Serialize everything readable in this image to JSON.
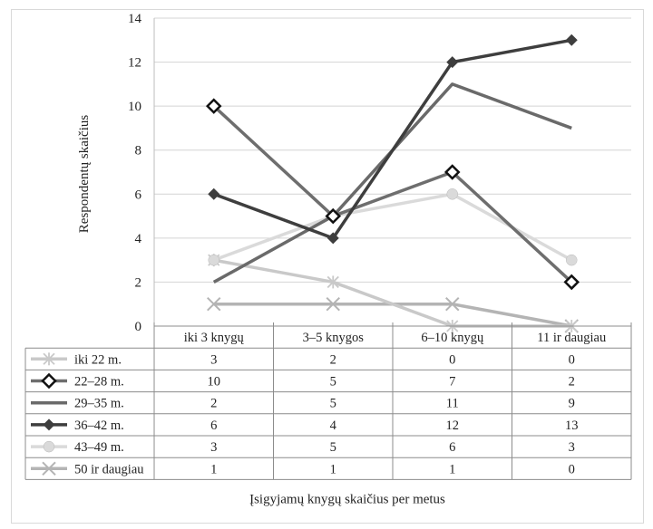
{
  "chart_data": {
    "type": "line",
    "categories": [
      "iki 3 knygų",
      "3–5 knygos",
      "6–10 knygų",
      "11 ir daugiau"
    ],
    "ylabel": "Respondentų skaičius",
    "xlabel": "Įsigyjamų knygų skaičius per metus",
    "ylim": [
      0,
      14
    ],
    "yticks": [
      "0",
      "2",
      "4",
      "6",
      "8",
      "10",
      "12",
      "14"
    ],
    "grid": "horizontal",
    "legend": "data-table",
    "series": [
      {
        "name": "iki 22 m.",
        "values": [
          3,
          2,
          0,
          0
        ],
        "color": "#c9c9c9",
        "marker": "asterisk"
      },
      {
        "name": "22–28 m.",
        "values": [
          10,
          5,
          7,
          2
        ],
        "color": "#6e6e6e",
        "marker": "diamond-outline"
      },
      {
        "name": "29–35 m.",
        "values": [
          2,
          5,
          11,
          9
        ],
        "color": "#6a6a6a",
        "marker": "none"
      },
      {
        "name": "36–42 m.",
        "values": [
          6,
          4,
          12,
          13
        ],
        "color": "#3e3e3e",
        "marker": "diamond"
      },
      {
        "name": "43–49 m.",
        "values": [
          3,
          5,
          6,
          3
        ],
        "color": "#dadada",
        "marker": "circle"
      },
      {
        "name": "50 ir daugiau",
        "values": [
          1,
          1,
          1,
          0
        ],
        "color": "#b4b4b4",
        "marker": "x"
      }
    ]
  }
}
